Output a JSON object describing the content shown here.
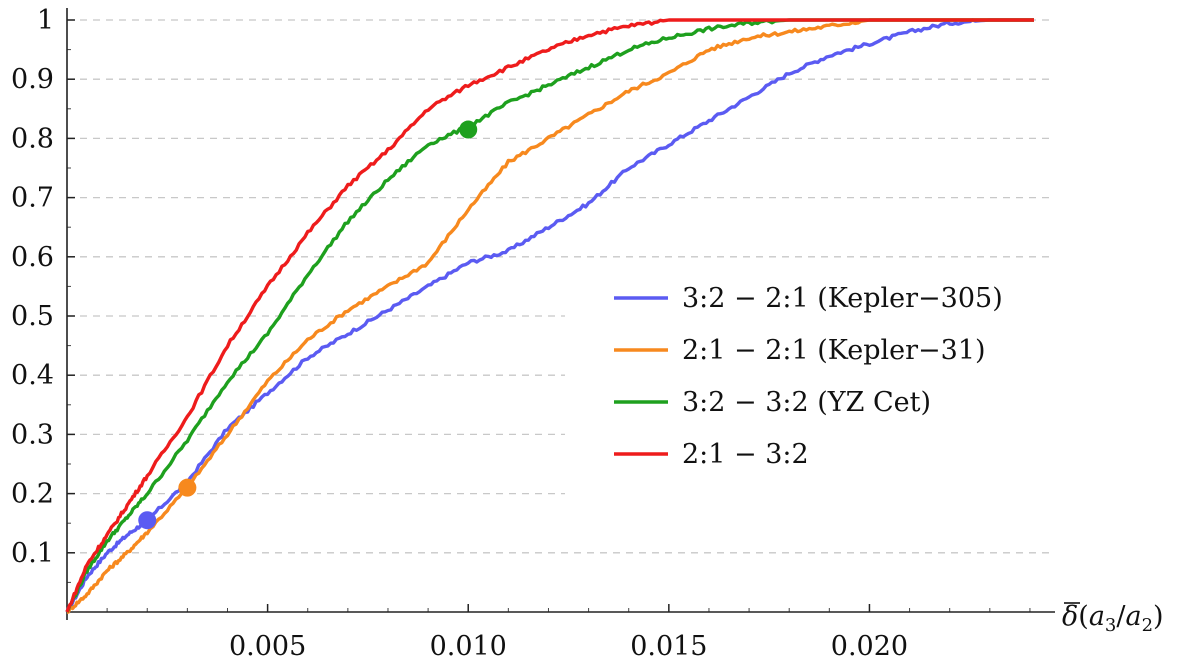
{
  "chart_data": {
    "type": "line",
    "xlabel": "δ̄(a3/a2)",
    "xlim": [
      0,
      0.0245
    ],
    "ylim": [
      0,
      1
    ],
    "x_ticks": [
      "0.005",
      "0.010",
      "0.015",
      "0.020"
    ],
    "x_tick_values": [
      0.005,
      0.01,
      0.015,
      0.02
    ],
    "y_ticks": [
      "0.1",
      "0.2",
      "0.3",
      "0.4",
      "0.5",
      "0.6",
      "0.7",
      "0.8",
      "0.9",
      "1"
    ],
    "y_tick_values": [
      0.1,
      0.2,
      0.3,
      0.4,
      0.5,
      0.6,
      0.7,
      0.8,
      0.9,
      1.0
    ],
    "grid": "horizontal dashed",
    "legend_position": "center-right",
    "series": [
      {
        "name": "3:2 − 2:1 (Kepler−305)",
        "color": "#5b5bf2",
        "x": [
          0,
          0.0005,
          0.001,
          0.0015,
          0.002,
          0.003,
          0.004,
          0.005,
          0.006,
          0.007,
          0.008,
          0.009,
          0.01,
          0.011,
          0.012,
          0.013,
          0.014,
          0.015,
          0.016,
          0.017,
          0.018,
          0.019,
          0.02,
          0.021,
          0.022,
          0.023,
          0.024
        ],
        "y": [
          0,
          0.06,
          0.1,
          0.13,
          0.155,
          0.22,
          0.31,
          0.37,
          0.43,
          0.47,
          0.51,
          0.55,
          0.59,
          0.61,
          0.65,
          0.69,
          0.75,
          0.79,
          0.83,
          0.87,
          0.91,
          0.94,
          0.96,
          0.98,
          0.995,
          1.0,
          1.0
        ],
        "marker": {
          "x": 0.002,
          "y": 0.155
        }
      },
      {
        "name": "2:1 − 2:1 (Kepler−31)",
        "color": "#f7891e",
        "x": [
          0,
          0.0005,
          0.001,
          0.0015,
          0.002,
          0.003,
          0.004,
          0.005,
          0.006,
          0.007,
          0.008,
          0.009,
          0.01,
          0.011,
          0.012,
          0.013,
          0.014,
          0.015,
          0.016,
          0.017,
          0.018,
          0.019,
          0.02,
          0.021,
          0.022
        ],
        "y": [
          0,
          0.03,
          0.07,
          0.1,
          0.135,
          0.21,
          0.3,
          0.39,
          0.46,
          0.51,
          0.55,
          0.59,
          0.68,
          0.76,
          0.8,
          0.84,
          0.88,
          0.91,
          0.95,
          0.97,
          0.98,
          0.99,
          1.0,
          1.0,
          1.0
        ],
        "marker": {
          "x": 0.003,
          "y": 0.21
        }
      },
      {
        "name": "3:2 − 3:2 (YZ Cet)",
        "color": "#1ea01e",
        "x": [
          0,
          0.0005,
          0.001,
          0.0015,
          0.002,
          0.003,
          0.004,
          0.005,
          0.006,
          0.007,
          0.008,
          0.009,
          0.01,
          0.011,
          0.012,
          0.013,
          0.014,
          0.015,
          0.016,
          0.017,
          0.018,
          0.019,
          0.02
        ],
        "y": [
          0,
          0.07,
          0.12,
          0.16,
          0.2,
          0.29,
          0.39,
          0.47,
          0.57,
          0.66,
          0.73,
          0.79,
          0.82,
          0.86,
          0.89,
          0.92,
          0.95,
          0.97,
          0.985,
          0.995,
          1.0,
          1.0,
          1.0
        ],
        "marker": {
          "x": 0.01,
          "y": 0.815
        }
      },
      {
        "name": "2:1 − 3:2",
        "color": "#ee1c1c",
        "x": [
          0,
          0.0005,
          0.001,
          0.0015,
          0.002,
          0.003,
          0.004,
          0.005,
          0.006,
          0.007,
          0.008,
          0.009,
          0.01,
          0.011,
          0.012,
          0.013,
          0.014,
          0.015,
          0.016,
          0.017,
          0.018
        ],
        "y": [
          0,
          0.08,
          0.13,
          0.18,
          0.23,
          0.33,
          0.45,
          0.55,
          0.64,
          0.72,
          0.78,
          0.85,
          0.89,
          0.92,
          0.95,
          0.975,
          0.99,
          1.0,
          1.0,
          1.0,
          1.0
        ]
      }
    ]
  }
}
